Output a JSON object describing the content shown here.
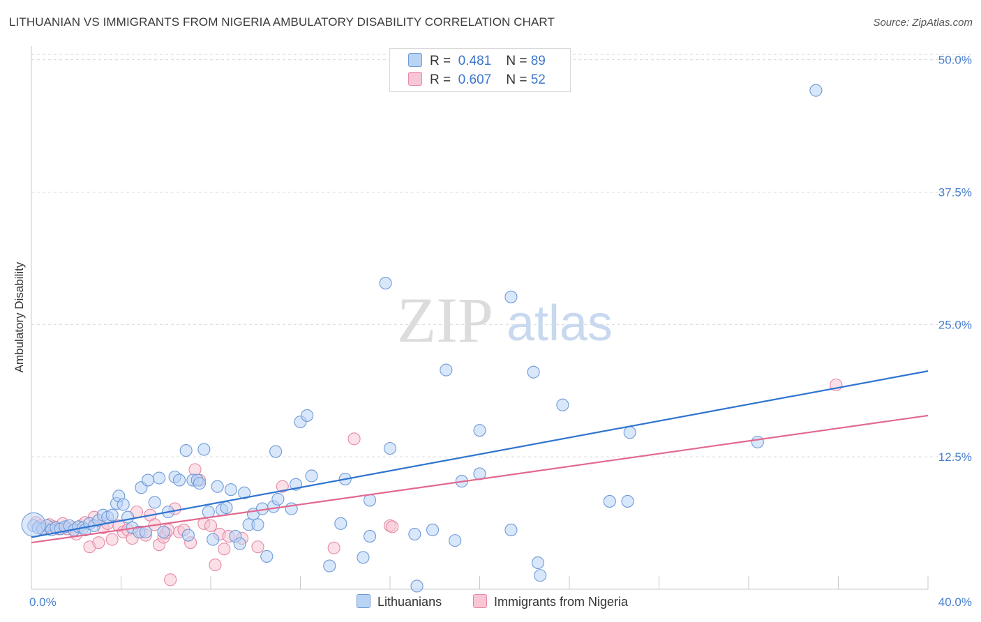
{
  "title": "LITHUANIAN VS IMMIGRANTS FROM NIGERIA AMBULATORY DISABILITY CORRELATION CHART",
  "source": "Source: ZipAtlas.com",
  "watermark": {
    "zip": "ZIP",
    "atlas": "atlas"
  },
  "colors": {
    "blue_fill": "#b9d3f5",
    "blue_stroke": "#6e9ad8",
    "blue_line": "#2f74d0",
    "pink_fill": "#f8c6d4",
    "pink_stroke": "#e58aa6",
    "pink_line": "#e2688f",
    "tick_text": "#4a7fd0",
    "grid": "#d6d6d6"
  },
  "legend": {
    "rows": [
      {
        "r_label": "R =",
        "r_value": "0.481",
        "n_label": "N =",
        "n_value": "89"
      },
      {
        "r_label": "R =",
        "r_value": "0.607",
        "n_label": "N =",
        "n_value": "52"
      }
    ]
  },
  "bottom_legend": [
    "Lithuanians",
    "Immigrants from Nigeria"
  ],
  "chart_data": {
    "type": "scatter",
    "title": "LITHUANIAN VS IMMIGRANTS FROM NIGERIA AMBULATORY DISABILITY CORRELATION CHART",
    "xlabel": "",
    "ylabel": "Ambulatory Disability",
    "xlim": [
      0,
      40
    ],
    "ylim": [
      0,
      50.5
    ],
    "x_tick_labels": [
      {
        "value": 0,
        "label": "0.0%"
      },
      {
        "value": 40,
        "label": "40.0%"
      }
    ],
    "y_tick_labels": [
      {
        "value": 12.5,
        "label": "12.5%"
      },
      {
        "value": 25.0,
        "label": "25.0%"
      },
      {
        "value": 37.5,
        "label": "37.5%"
      },
      {
        "value": 50.0,
        "label": "50.0%"
      }
    ],
    "x_minor_ticks": [
      0,
      4,
      8,
      12,
      16,
      20,
      24,
      28,
      32,
      36,
      40
    ],
    "grid": true,
    "series": [
      {
        "name": "Lithuanians",
        "color": "blue",
        "trend": {
          "x": [
            0,
            40
          ],
          "y": [
            4.9,
            20.6
          ]
        },
        "points": [
          [
            0.1,
            6.0
          ],
          [
            0.3,
            5.8
          ],
          [
            0.5,
            5.7
          ],
          [
            0.7,
            6.0
          ],
          [
            0.9,
            5.6
          ],
          [
            1.1,
            5.8
          ],
          [
            1.3,
            5.7
          ],
          [
            1.5,
            5.9
          ],
          [
            1.7,
            6.0
          ],
          [
            1.9,
            5.6
          ],
          [
            2.1,
            5.9
          ],
          [
            2.3,
            5.8
          ],
          [
            2.4,
            5.6
          ],
          [
            2.6,
            6.2
          ],
          [
            2.8,
            6.0
          ],
          [
            3.0,
            6.5
          ],
          [
            3.2,
            7.0
          ],
          [
            3.4,
            6.8
          ],
          [
            3.6,
            7.0
          ],
          [
            3.8,
            8.1
          ],
          [
            3.9,
            8.8
          ],
          [
            4.1,
            8.0
          ],
          [
            4.3,
            6.8
          ],
          [
            4.5,
            5.8
          ],
          [
            4.8,
            5.4
          ],
          [
            4.9,
            9.6
          ],
          [
            5.1,
            5.4
          ],
          [
            5.2,
            10.3
          ],
          [
            5.5,
            8.2
          ],
          [
            5.7,
            10.5
          ],
          [
            5.9,
            5.4
          ],
          [
            6.1,
            7.3
          ],
          [
            6.4,
            10.6
          ],
          [
            6.6,
            10.3
          ],
          [
            6.9,
            13.1
          ],
          [
            7.0,
            5.1
          ],
          [
            7.2,
            10.3
          ],
          [
            7.4,
            10.3
          ],
          [
            7.5,
            10.0
          ],
          [
            7.7,
            13.2
          ],
          [
            7.9,
            7.3
          ],
          [
            8.1,
            4.7
          ],
          [
            8.3,
            9.7
          ],
          [
            8.5,
            7.5
          ],
          [
            8.7,
            7.7
          ],
          [
            8.9,
            9.4
          ],
          [
            9.1,
            5.0
          ],
          [
            9.3,
            4.3
          ],
          [
            9.5,
            9.1
          ],
          [
            9.7,
            6.1
          ],
          [
            9.9,
            7.1
          ],
          [
            10.1,
            6.1
          ],
          [
            10.3,
            7.6
          ],
          [
            10.5,
            3.1
          ],
          [
            10.8,
            7.8
          ],
          [
            10.9,
            13.0
          ],
          [
            11.0,
            8.5
          ],
          [
            11.6,
            7.6
          ],
          [
            12.0,
            15.8
          ],
          [
            12.3,
            16.4
          ],
          [
            12.5,
            10.7
          ],
          [
            11.8,
            9.9
          ],
          [
            13.3,
            2.2
          ],
          [
            13.8,
            6.2
          ],
          [
            14.0,
            10.4
          ],
          [
            15.1,
            8.4
          ],
          [
            15.1,
            5.0
          ],
          [
            16.0,
            13.3
          ],
          [
            15.8,
            28.9
          ],
          [
            17.1,
            5.2
          ],
          [
            17.2,
            0.3
          ],
          [
            17.9,
            5.6
          ],
          [
            18.5,
            20.7
          ],
          [
            18.9,
            4.6
          ],
          [
            20.0,
            15.0
          ],
          [
            20.0,
            10.9
          ],
          [
            21.4,
            27.6
          ],
          [
            21.4,
            5.6
          ],
          [
            22.4,
            20.5
          ],
          [
            22.6,
            2.5
          ],
          [
            22.7,
            1.3
          ],
          [
            23.7,
            17.4
          ],
          [
            25.8,
            8.3
          ],
          [
            26.7,
            14.8
          ],
          [
            26.6,
            8.3
          ],
          [
            32.4,
            13.9
          ],
          [
            35.0,
            47.1
          ],
          [
            14.8,
            3.0
          ],
          [
            19.2,
            10.2
          ]
        ]
      },
      {
        "name": "Immigrants from Nigeria",
        "color": "pink",
        "trend": {
          "x": [
            0,
            40
          ],
          "y": [
            4.4,
            16.4
          ]
        },
        "points": [
          [
            0.2,
            6.3
          ],
          [
            0.4,
            6.0
          ],
          [
            0.6,
            5.8
          ],
          [
            0.8,
            6.1
          ],
          [
            1.0,
            5.9
          ],
          [
            1.2,
            5.7
          ],
          [
            1.4,
            6.2
          ],
          [
            1.6,
            5.7
          ],
          [
            1.8,
            5.8
          ],
          [
            2.0,
            5.2
          ],
          [
            2.2,
            6.0
          ],
          [
            2.4,
            6.3
          ],
          [
            2.6,
            4.0
          ],
          [
            2.8,
            6.8
          ],
          [
            3.0,
            4.4
          ],
          [
            3.2,
            5.8
          ],
          [
            3.4,
            6.2
          ],
          [
            3.6,
            4.7
          ],
          [
            3.9,
            6.0
          ],
          [
            4.1,
            5.4
          ],
          [
            4.3,
            5.6
          ],
          [
            4.5,
            4.8
          ],
          [
            4.7,
            7.3
          ],
          [
            4.9,
            5.4
          ],
          [
            5.1,
            5.1
          ],
          [
            5.3,
            7.0
          ],
          [
            5.5,
            6.1
          ],
          [
            5.7,
            4.2
          ],
          [
            5.9,
            4.9
          ],
          [
            6.0,
            5.3
          ],
          [
            6.2,
            0.9
          ],
          [
            6.4,
            7.6
          ],
          [
            6.6,
            5.4
          ],
          [
            6.8,
            5.6
          ],
          [
            7.1,
            4.4
          ],
          [
            7.3,
            11.3
          ],
          [
            7.5,
            10.3
          ],
          [
            7.7,
            6.2
          ],
          [
            8.0,
            6.0
          ],
          [
            8.2,
            2.3
          ],
          [
            8.4,
            5.2
          ],
          [
            8.6,
            3.8
          ],
          [
            8.8,
            5.0
          ],
          [
            9.4,
            4.8
          ],
          [
            10.1,
            4.0
          ],
          [
            11.2,
            9.7
          ],
          [
            13.5,
            3.9
          ],
          [
            14.4,
            14.2
          ],
          [
            16.0,
            6.0
          ],
          [
            16.1,
            5.9
          ],
          [
            35.9,
            19.3
          ],
          [
            6.1,
            5.6
          ]
        ]
      }
    ]
  }
}
